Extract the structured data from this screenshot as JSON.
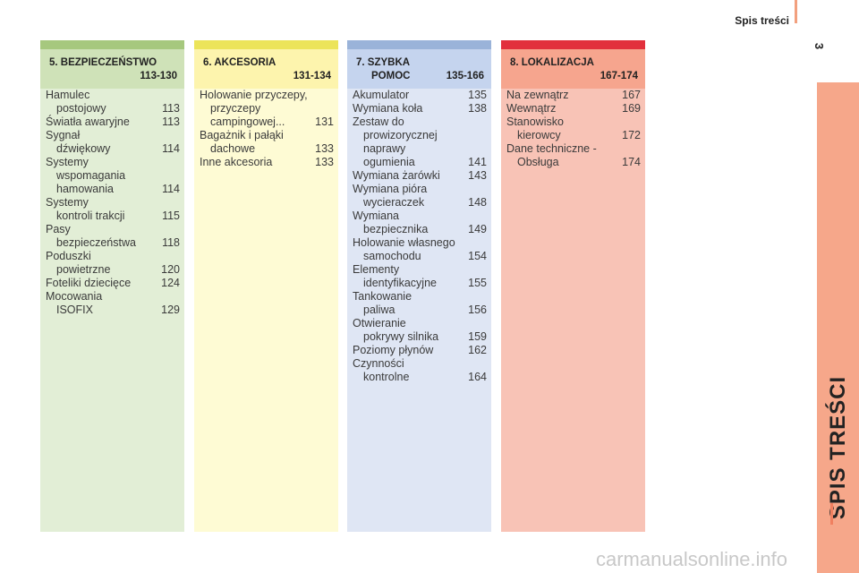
{
  "header": {
    "title": "Spis treści",
    "page_number": "3"
  },
  "side_title": "SPIS TREŚCI",
  "sections": {
    "s5": {
      "title": "5. BEZPIECZEŃSTWO",
      "title2": "",
      "range": "113-130",
      "colors": {
        "bar": "#a6c87e",
        "header": "#cfe2b8",
        "body": "#e2eed6"
      },
      "items": [
        {
          "l1": "Hamulec",
          "l2": "postojowy",
          "page": "113"
        },
        {
          "l1": "Światła awaryjne",
          "l2": "",
          "page": "113"
        },
        {
          "l1": "Sygnał",
          "l2": "dźwiękowy",
          "page": "114"
        },
        {
          "l1": "Systemy",
          "l2": "wspomagania\nhamowania",
          "page": "114"
        },
        {
          "l1": "Systemy",
          "l2": "kontroli trakcji",
          "page": "115"
        },
        {
          "l1": "Pasy",
          "l2": "bezpieczeństwa",
          "page": "118"
        },
        {
          "l1": "Poduszki",
          "l2": "powietrzne",
          "page": "120"
        },
        {
          "l1": "Foteliki dziecięce",
          "l2": "",
          "page": "124"
        },
        {
          "l1": "Mocowania",
          "l2": "ISOFIX",
          "page": "129"
        }
      ]
    },
    "s6": {
      "title": "6. AKCESORIA",
      "title2": "",
      "range": "131-134",
      "colors": {
        "bar": "#ece45a",
        "header": "#fdf4ad",
        "body": "#fefbd4"
      },
      "items": [
        {
          "l1": "Holowanie przyczepy,",
          "l2": "przyczepy\ncampingowej...",
          "page": "131"
        },
        {
          "l1": "Bagażnik i pałąki",
          "l2": "dachowe",
          "page": "133"
        },
        {
          "l1": "Inne akcesoria",
          "l2": "",
          "page": "133"
        }
      ]
    },
    "s7": {
      "title": "7. SZYBKA",
      "title2": "POMOC",
      "range": "135-166",
      "colors": {
        "bar": "#9ab3d9",
        "header": "#c5d4ee",
        "body": "#dfe6f4"
      },
      "items": [
        {
          "l1": "Akumulator",
          "l2": "",
          "page": "135"
        },
        {
          "l1": "Wymiana koła",
          "l2": "",
          "page": "138"
        },
        {
          "l1": "Zestaw do",
          "l2": "prowizorycznej\nnaprawy\nogumienia",
          "page": "141"
        },
        {
          "l1": "Wymiana żarówki",
          "l2": "",
          "page": "143"
        },
        {
          "l1": "Wymiana pióra",
          "l2": "wycieraczek",
          "page": "148"
        },
        {
          "l1": "Wymiana",
          "l2": "bezpiecznika",
          "page": "149"
        },
        {
          "l1": "Holowanie własnego",
          "l2": "samochodu",
          "page": "154"
        },
        {
          "l1": "Elementy",
          "l2": "identyfikacyjne",
          "page": "155"
        },
        {
          "l1": "Tankowanie",
          "l2": "paliwa",
          "page": "156"
        },
        {
          "l1": "Otwieranie",
          "l2": "pokrywy silnika",
          "page": "159"
        },
        {
          "l1": "Poziomy płynów",
          "l2": "",
          "page": "162"
        },
        {
          "l1": "Czynności",
          "l2": "kontrolne",
          "page": "164"
        }
      ]
    },
    "s8": {
      "title": "8. LOKALIZACJA",
      "title2": "",
      "range": "167-174",
      "colors": {
        "bar": "#e2303c",
        "header": "#f6a58e",
        "body": "#f8c3b6"
      },
      "items": [
        {
          "l1": "Na zewnątrz",
          "l2": "",
          "page": "167"
        },
        {
          "l1": "Wewnątrz",
          "l2": "",
          "page": "169"
        },
        {
          "l1": "Stanowisko",
          "l2": "kierowcy",
          "page": "172"
        },
        {
          "l1": "Dane techniczne -",
          "l2": "Obsługa",
          "page": "174"
        }
      ]
    }
  },
  "watermark": "carmanualsonline.info"
}
